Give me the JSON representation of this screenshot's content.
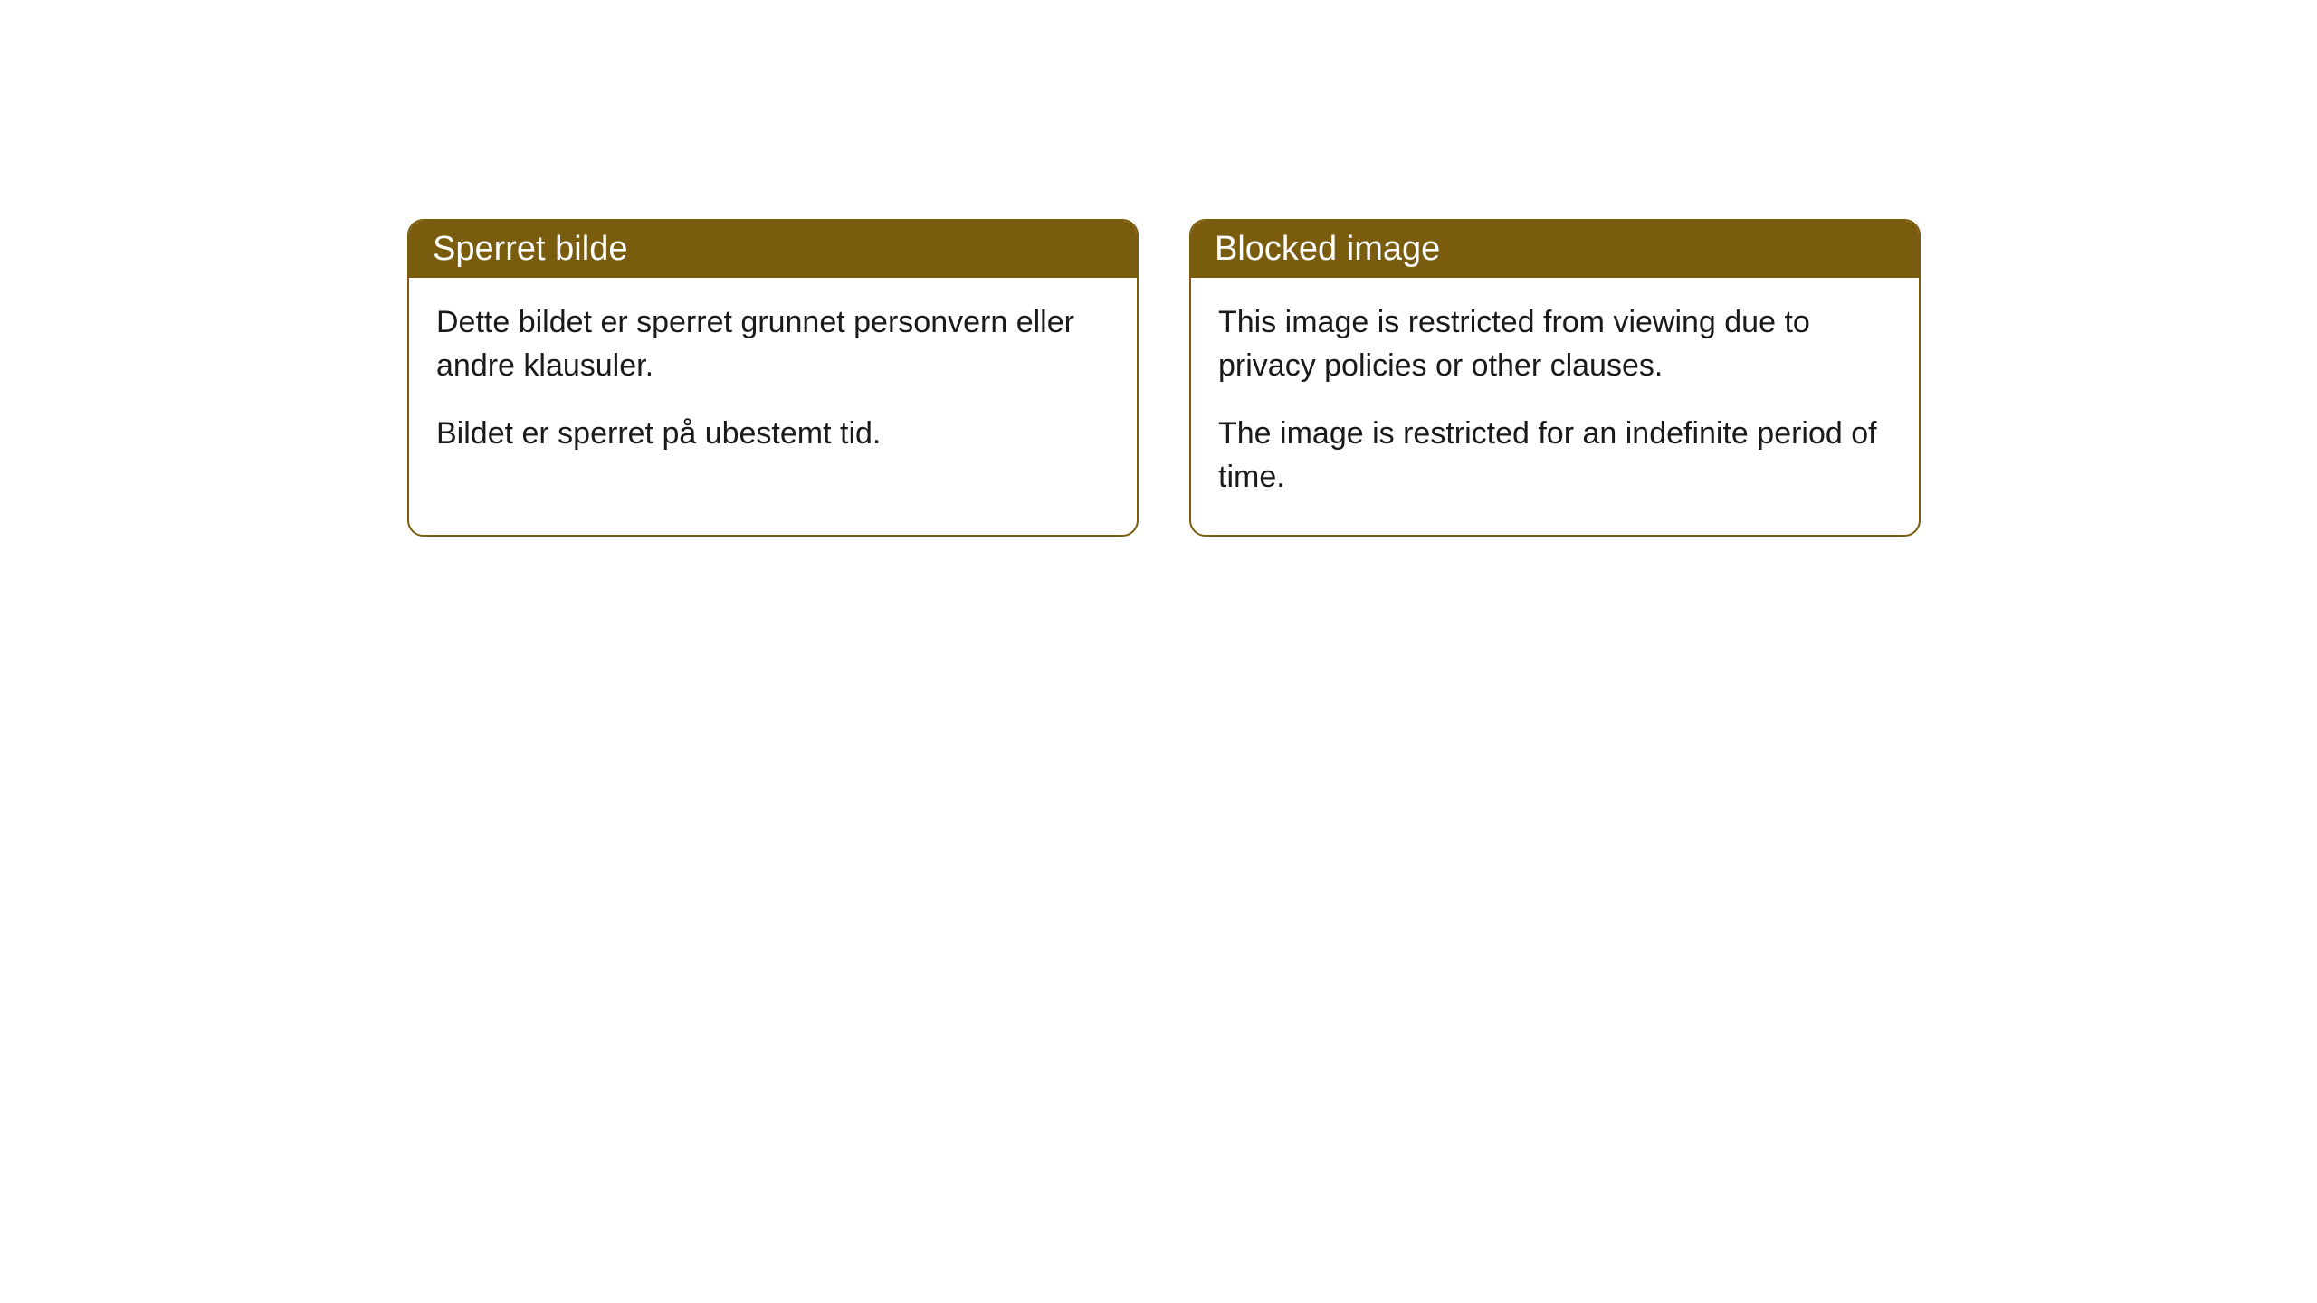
{
  "cards": [
    {
      "title": "Sperret bilde",
      "paragraph1": "Dette bildet er sperret grunnet personvern eller andre klausuler.",
      "paragraph2": "Bildet er sperret på ubestemt tid."
    },
    {
      "title": "Blocked image",
      "paragraph1": "This image is restricted from viewing due to privacy policies or other clauses.",
      "paragraph2": "The image is restricted for an indefinite period of time."
    }
  ],
  "style": {
    "header_bg": "#7a5c0f",
    "header_text": "#ffffff",
    "border_color": "#7a5c0f",
    "body_bg": "#ffffff",
    "body_text": "#1a1a1a",
    "border_radius": 18,
    "title_fontsize": 38,
    "body_fontsize": 34
  }
}
